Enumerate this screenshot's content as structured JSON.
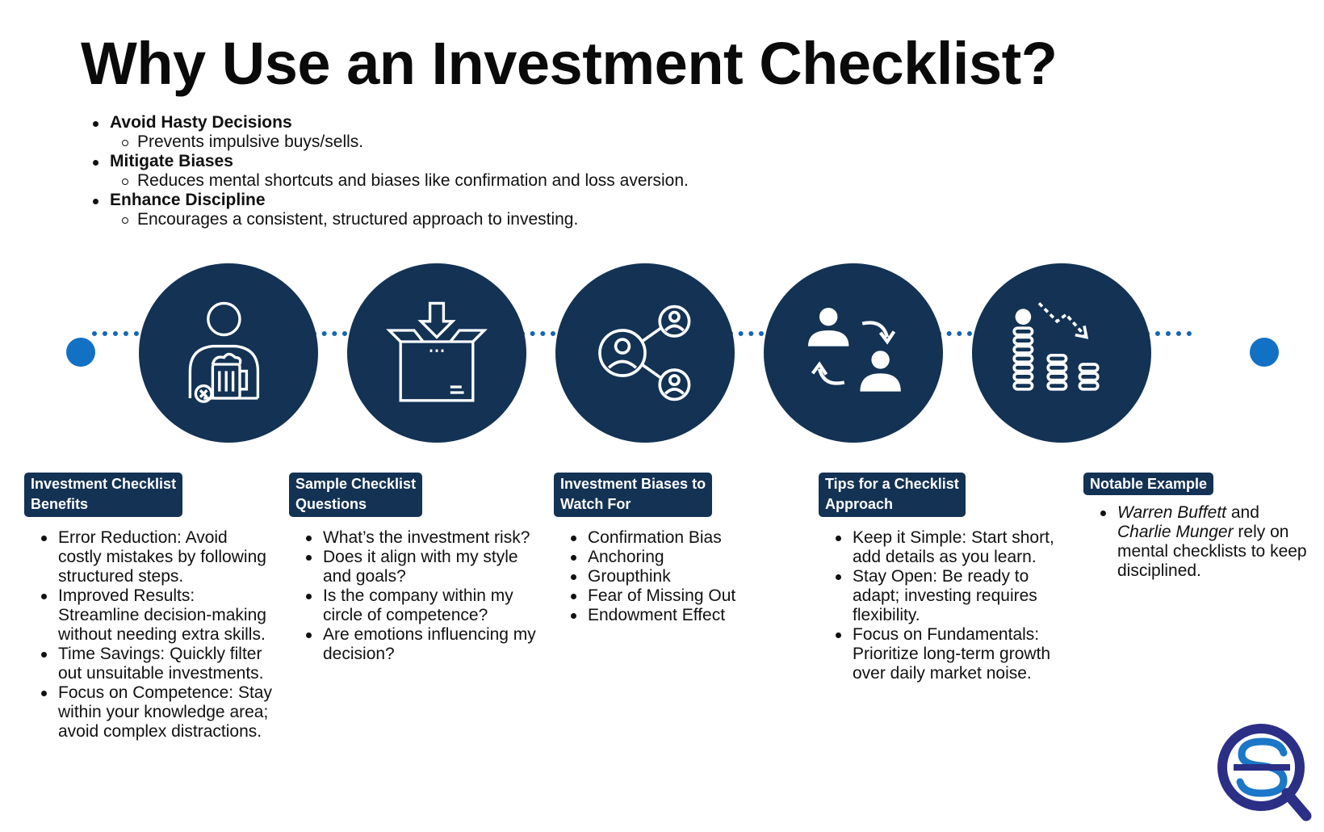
{
  "title": "Why Use an Investment Checklist?",
  "intro": [
    {
      "heading": "Avoid Hasty Decisions",
      "detail": "Prevents impulsive buys/sells."
    },
    {
      "heading": "Mitigate Biases",
      "detail": "Reduces mental shortcuts and biases like confirmation and loss aversion."
    },
    {
      "heading": "Enhance Discipline",
      "detail": "Encourages a consistent, structured approach to investing."
    }
  ],
  "colors": {
    "navy": "#133254",
    "accent_blue": "#1271c4",
    "text": "#111111"
  },
  "columns": [
    {
      "icon": "person-with-jar-icon",
      "label_line1": "Investment Checklist",
      "label_line2": "Benefits",
      "items": [
        "Error Reduction: Avoid costly mistakes by following structured steps.",
        "Improved Results: Streamline decision-making without needing extra skills.",
        "Time Savings: Quickly filter out unsuitable investments.",
        "Focus on Competence: Stay within your knowledge area; avoid complex distractions."
      ]
    },
    {
      "icon": "box-with-arrow-icon",
      "label_line1": "Sample Checklist",
      "label_line2": "Questions",
      "items": [
        "What’s the investment risk?",
        "Does it align with my style and goals?",
        "Is the company within my circle of competence?",
        "Are emotions influencing my decision?"
      ]
    },
    {
      "icon": "network-people-icon",
      "label_line1": "Investment Biases to",
      "label_line2": "Watch For",
      "items": [
        "Confirmation Bias",
        "Anchoring",
        "Groupthink",
        "Fear of Missing Out",
        "Endowment Effect"
      ]
    },
    {
      "icon": "people-exchange-icon",
      "label_line1": "Tips for a Checklist",
      "label_line2": "Approach",
      "items": [
        "Keep it Simple: Start short, add details as you learn.",
        "Stay Open: Be ready to adapt; investing requires flexibility.",
        "Focus on Fundamentals: Prioritize long-term growth over daily market noise."
      ]
    },
    {
      "icon": "coins-decline-icon",
      "label_line1": "Notable Example",
      "label_line2": "",
      "example": {
        "name1": "Warren Buffett",
        "joiner": " and ",
        "name2": "Charlie Munger",
        "rest": " rely on mental checklists to keep disciplined."
      }
    }
  ],
  "logo": {
    "icon": "brand-logo-icon"
  }
}
